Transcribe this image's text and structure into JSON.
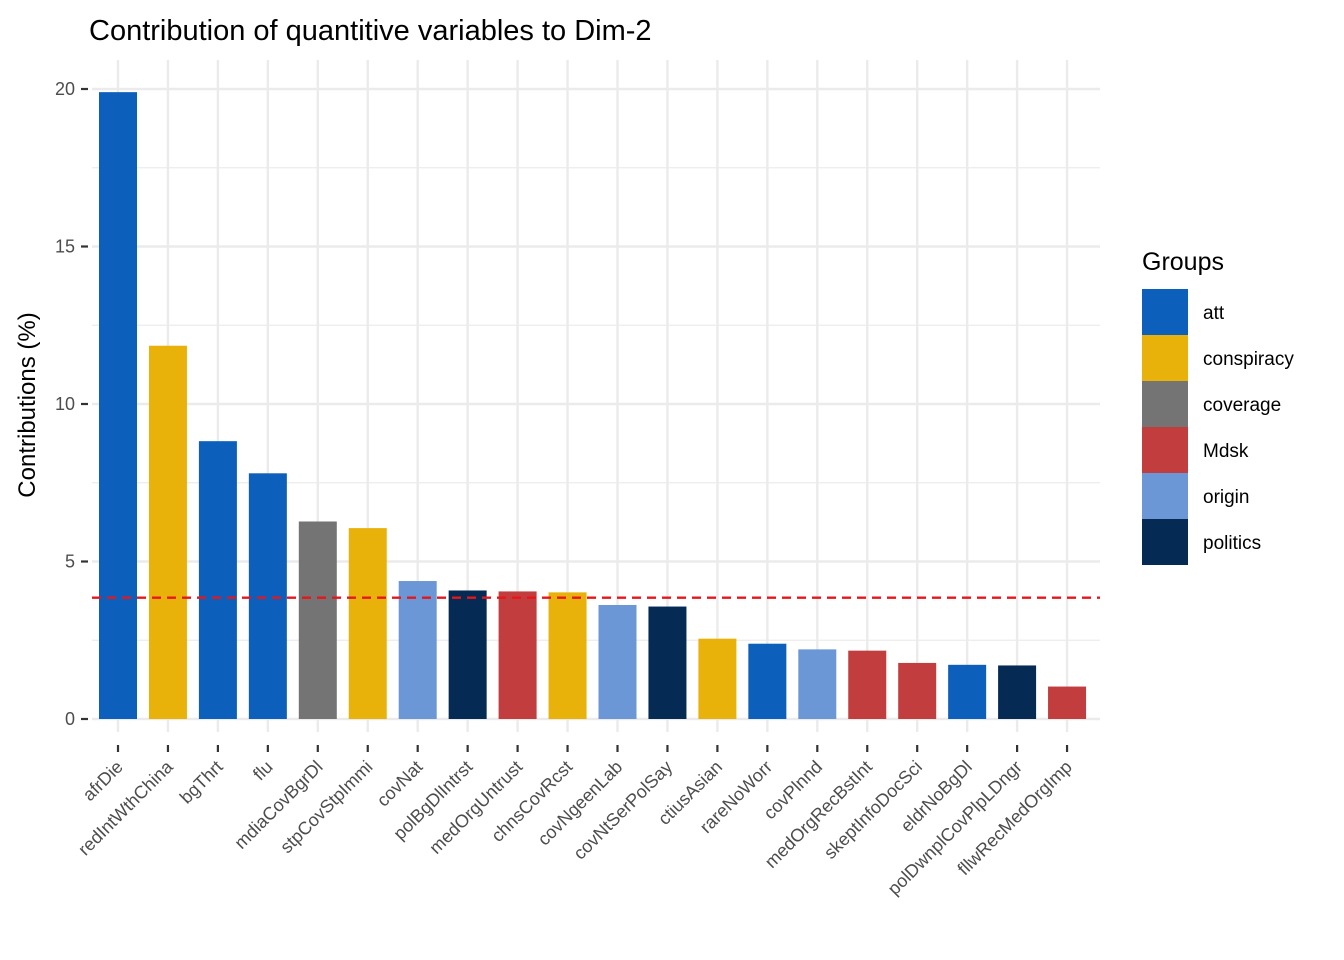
{
  "chart_data": {
    "type": "bar",
    "title": "Contribution of quantitive variables to Dim-2",
    "xlabel": "",
    "ylabel": "Contributions (%)",
    "ylim": [
      0,
      20.5
    ],
    "yticks": [
      0,
      5,
      10,
      15,
      20
    ],
    "grid": true,
    "legend": {
      "title": "Groups",
      "position": "right",
      "items": [
        {
          "label": "att",
          "color": "#0C5FBA"
        },
        {
          "label": "conspiracy",
          "color": "#E8B20A"
        },
        {
          "label": "coverage",
          "color": "#747474"
        },
        {
          "label": "Mdsk",
          "color": "#C23D3D"
        },
        {
          "label": "origin",
          "color": "#6B97D6"
        },
        {
          "label": "politics",
          "color": "#052B55"
        }
      ]
    },
    "reference_line": {
      "value": 3.85,
      "color": "#E8151B",
      "style": "dashed"
    },
    "categories": [
      "afrDie",
      "redIntWthChina",
      "bgThrt",
      "flu",
      "mdiaCovBgrDl",
      "stpCovStpImmi",
      "covNat",
      "polBgDlIntrst",
      "medOrgUntrust",
      "chnsCovRcst",
      "covNgeenLab",
      "covNtSerPolSay",
      "ctiusAsian",
      "rareNoWorr",
      "covPlnnd",
      "medOrgRecBstInt",
      "skeptInfoDocSci",
      "eldrNoBgDl",
      "polDwnplCovPlpLDngr",
      "fllwRecMedOrgImp"
    ],
    "values": [
      19.9,
      11.85,
      8.82,
      7.8,
      6.27,
      6.06,
      4.38,
      4.08,
      4.05,
      4.02,
      3.62,
      3.57,
      2.55,
      2.39,
      2.21,
      2.17,
      1.78,
      1.72,
      1.7,
      1.03
    ],
    "groups": [
      "att",
      "conspiracy",
      "att",
      "att",
      "coverage",
      "conspiracy",
      "origin",
      "politics",
      "Mdsk",
      "conspiracy",
      "origin",
      "politics",
      "conspiracy",
      "att",
      "origin",
      "Mdsk",
      "Mdsk",
      "att",
      "politics",
      "Mdsk"
    ]
  }
}
